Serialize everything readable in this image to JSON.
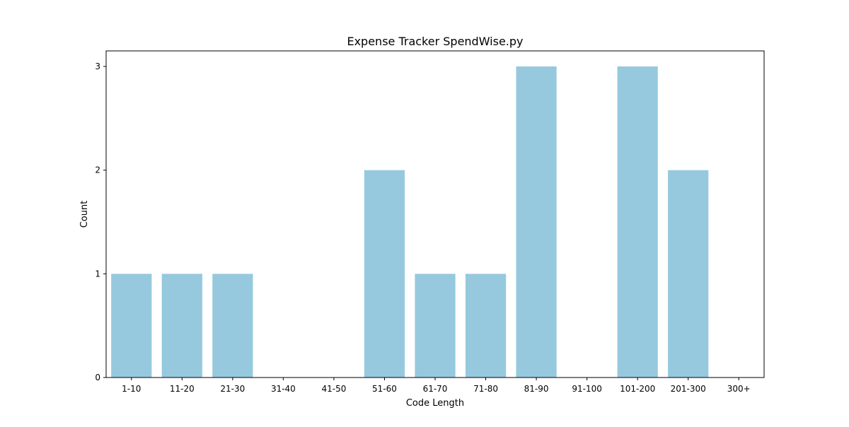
{
  "chart_data": {
    "type": "bar",
    "title": "Expense Tracker  SpendWise.py",
    "xlabel": "Code Length",
    "ylabel": "Count",
    "categories": [
      "1-10",
      "11-20",
      "21-30",
      "31-40",
      "41-50",
      "51-60",
      "61-70",
      "71-80",
      "81-90",
      "91-100",
      "101-200",
      "201-300",
      "300+"
    ],
    "values": [
      1,
      1,
      1,
      0,
      0,
      2,
      1,
      1,
      3,
      0,
      3,
      2,
      0
    ],
    "ylim": [
      0,
      3.15
    ],
    "yticks": [
      0,
      1,
      2,
      3
    ],
    "grid": false,
    "legend": "none",
    "bar_color": "#96c9de"
  }
}
